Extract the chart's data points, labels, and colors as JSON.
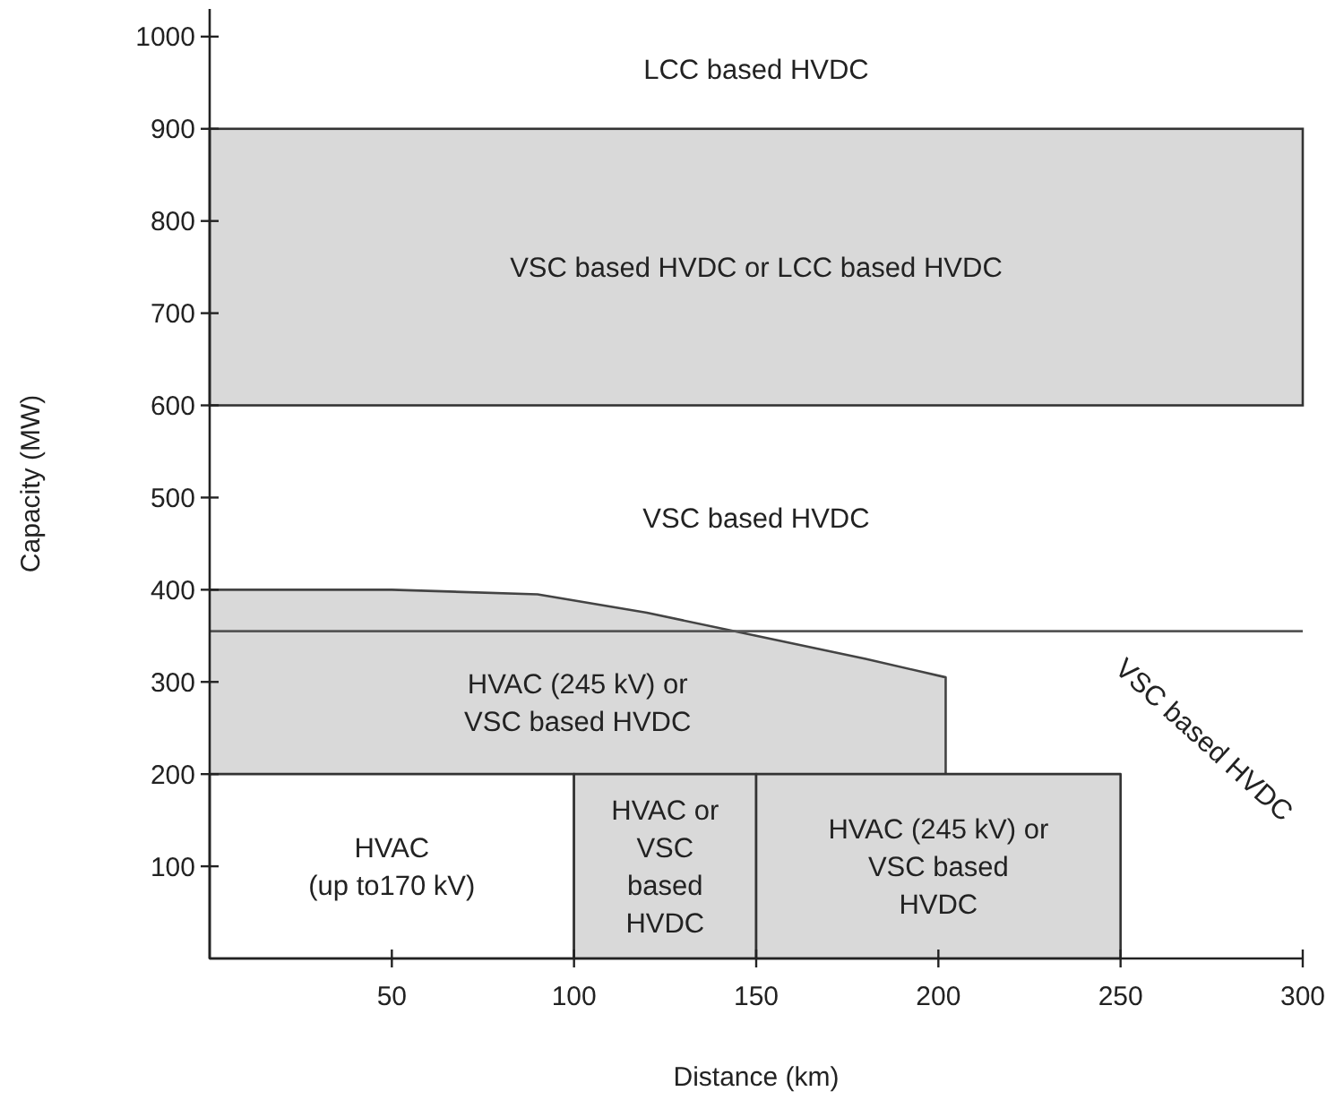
{
  "chart_data": {
    "type": "area",
    "xlabel": "Distance (km)",
    "ylabel": "Capacity (MW)",
    "xlim": [
      0,
      300
    ],
    "ylim": [
      0,
      1030
    ],
    "xticks": [
      50,
      100,
      150,
      200,
      250,
      300
    ],
    "yticks": [
      100,
      200,
      300,
      400,
      500,
      600,
      700,
      800,
      900,
      1000
    ],
    "series": [
      {
        "type": "line",
        "color": "#444444",
        "x": [
          0,
          50,
          90,
          120,
          150,
          180,
          202,
          202
        ],
        "values": [
          400,
          400,
          395,
          375,
          350,
          325,
          305,
          200
        ],
        "lower": [
          200,
          200,
          200,
          200,
          200,
          200,
          200,
          200
        ],
        "upper": [
          400,
          400,
          395,
          375,
          350,
          325,
          305,
          200
        ]
      },
      {
        "color": "#ffffff",
        "x": [
          0,
          100
        ],
        "values": [
          200,
          200
        ]
      },
      {
        "color": "#d9d9d9",
        "x": [
          100,
          150
        ],
        "values": [
          200,
          200
        ]
      },
      {
        "color": "#d9d9d9",
        "x": [
          150,
          250
        ],
        "values": [
          200,
          200
        ]
      }
    ],
    "bands": [
      {
        "axis": "y",
        "from": 600,
        "to": 900,
        "color": "#d9d9d9"
      }
    ],
    "ref_lines": [
      {
        "axis": "y",
        "value": 355,
        "color": "#555555"
      }
    ],
    "annotations": [
      "LCC based HVDC",
      "VSC based HVDC or LCC based HVDC",
      "VSC based HVDC",
      "HVAC (245 kV) or\nVSC based HVDC",
      "HVAC\n(up to170 kV)",
      "HVAC or\nVSC\nbased\nHVDC",
      "HVAC (245 kV) or\nVSC based\nHVDC",
      "VSC based HVDC"
    ]
  }
}
